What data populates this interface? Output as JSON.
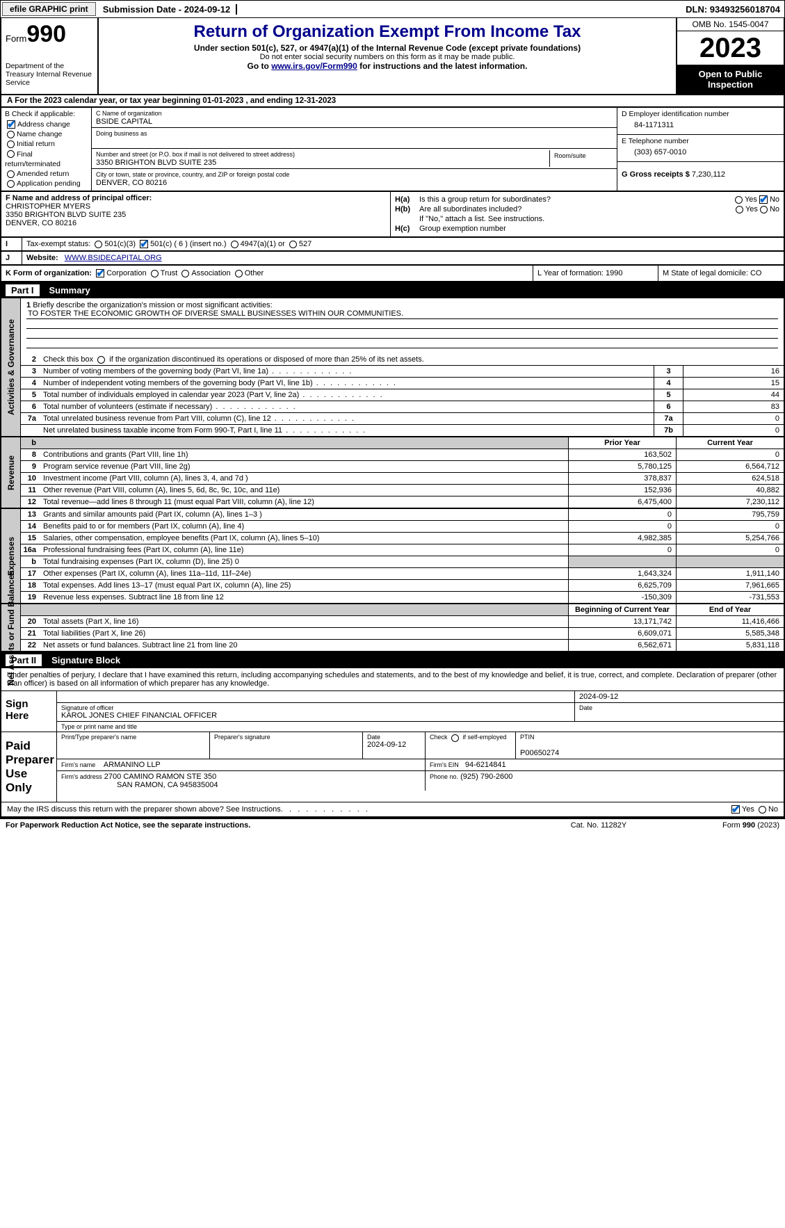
{
  "topbar": {
    "btn1": "efile GRAPHIC print",
    "sub": "Submission Date - 2024-09-12",
    "dln": "DLN: 93493256018704"
  },
  "header": {
    "form_label": "Form",
    "form_no": "990",
    "dept": "Department of the Treasury Internal Revenue Service",
    "title": "Return of Organization Exempt From Income Tax",
    "sub1": "Under section 501(c), 527, or 4947(a)(1) of the Internal Revenue Code (except private foundations)",
    "sub2": "Do not enter social security numbers on this form as it may be made public.",
    "sub3_a": "Go to ",
    "sub3_link": "www.irs.gov/Form990",
    "sub3_b": " for instructions and the latest information.",
    "omb": "OMB No. 1545-0047",
    "year": "2023",
    "otp": "Open to Public Inspection"
  },
  "A": {
    "text": "For the 2023 calendar year, or tax year beginning 01-01-2023   , and ending 12-31-2023"
  },
  "B": {
    "hdr": "B Check if applicable:",
    "items": [
      "Address change",
      "Name change",
      "Initial return",
      "Final return/terminated",
      "Amended return",
      "Application pending"
    ],
    "checked": [
      true,
      false,
      false,
      false,
      false,
      false
    ]
  },
  "C": {
    "name_lbl": "C Name of organization",
    "name": "BSIDE CAPITAL",
    "dba_lbl": "Doing business as",
    "dba": "",
    "addr_lbl": "Number and street (or P.O. box if mail is not delivered to street address)",
    "addr": "3350 BRIGHTON BLVD SUITE 235",
    "room_lbl": "Room/suite",
    "city_lbl": "City or town, state or province, country, and ZIP or foreign postal code",
    "city": "DENVER, CO  80216"
  },
  "D": {
    "lbl": "D Employer identification number",
    "val": "84-1171311"
  },
  "E": {
    "lbl": "E Telephone number",
    "val": "(303) 657-0010"
  },
  "G": {
    "lbl": "G Gross receipts $",
    "val": "7,230,112"
  },
  "F": {
    "lbl": "F  Name and address of principal officer:",
    "name": "CHRISTOPHER MYERS",
    "addr1": "3350 BRIGHTON BLVD SUITE 235",
    "addr2": "DENVER, CO  80216"
  },
  "H": {
    "a": "Is this a group return for subordinates?",
    "b": "Are all subordinates included?",
    "bnote": "If \"No,\" attach a list. See instructions.",
    "c": "Group exemption number",
    "yes": "Yes",
    "no": "No"
  },
  "I": {
    "lbl": "Tax-exempt status:",
    "o1": "501(c)(3)",
    "o2": "501(c) ( 6 ) (insert no.)",
    "o3": "4947(a)(1) or",
    "o4": "527"
  },
  "J": {
    "lbl": "Website:",
    "val": "WWW.BSIDECAPITAL.ORG"
  },
  "K": {
    "lbl": "K Form of organization:",
    "o1": "Corporation",
    "o2": "Trust",
    "o3": "Association",
    "o4": "Other"
  },
  "L": {
    "lbl": "L Year of formation: 1990"
  },
  "M": {
    "lbl": "M State of legal domicile: CO"
  },
  "part1": {
    "num": "Part I",
    "title": "Summary"
  },
  "p1": {
    "l1a": "Briefly describe the organization's mission or most significant activities:",
    "l1b": "TO FOSTER THE ECONOMIC GROWTH OF DIVERSE SMALL BUSINESSES WITHIN OUR COMMUNITIES.",
    "l2": "Check this box      if the organization discontinued its operations or disposed of more than 25% of its net assets.",
    "rows_gov": [
      {
        "n": "3",
        "t": "Number of voting members of the governing body (Part VI, line 1a)",
        "c": "3",
        "v": "16"
      },
      {
        "n": "4",
        "t": "Number of independent voting members of the governing body (Part VI, line 1b)",
        "c": "4",
        "v": "15"
      },
      {
        "n": "5",
        "t": "Total number of individuals employed in calendar year 2023 (Part V, line 2a)",
        "c": "5",
        "v": "44"
      },
      {
        "n": "6",
        "t": "Total number of volunteers (estimate if necessary)",
        "c": "6",
        "v": "83"
      },
      {
        "n": "7a",
        "t": "Total unrelated business revenue from Part VIII, column (C), line 12",
        "c": "7a",
        "v": "0"
      },
      {
        "n": "",
        "t": "Net unrelated business taxable income from Form 990-T, Part I, line 11",
        "c": "7b",
        "v": "0"
      }
    ],
    "col_prior": "Prior Year",
    "col_curr": "Current Year",
    "rows_rev": [
      {
        "n": "8",
        "t": "Contributions and grants (Part VIII, line 1h)",
        "p": "163,502",
        "c": "0"
      },
      {
        "n": "9",
        "t": "Program service revenue (Part VIII, line 2g)",
        "p": "5,780,125",
        "c": "6,564,712"
      },
      {
        "n": "10",
        "t": "Investment income (Part VIII, column (A), lines 3, 4, and 7d )",
        "p": "378,837",
        "c": "624,518"
      },
      {
        "n": "11",
        "t": "Other revenue (Part VIII, column (A), lines 5, 6d, 8c, 9c, 10c, and 11e)",
        "p": "152,936",
        "c": "40,882"
      },
      {
        "n": "12",
        "t": "Total revenue—add lines 8 through 11 (must equal Part VIII, column (A), line 12)",
        "p": "6,475,400",
        "c": "7,230,112"
      }
    ],
    "rows_exp": [
      {
        "n": "13",
        "t": "Grants and similar amounts paid (Part IX, column (A), lines 1–3 )",
        "p": "0",
        "c": "795,759"
      },
      {
        "n": "14",
        "t": "Benefits paid to or for members (Part IX, column (A), line 4)",
        "p": "0",
        "c": "0"
      },
      {
        "n": "15",
        "t": "Salaries, other compensation, employee benefits (Part IX, column (A), lines 5–10)",
        "p": "4,982,385",
        "c": "5,254,766"
      },
      {
        "n": "16a",
        "t": "Professional fundraising fees (Part IX, column (A), line 11e)",
        "p": "0",
        "c": "0"
      },
      {
        "n": "b",
        "t": "Total fundraising expenses (Part IX, column (D), line 25) 0",
        "p": "",
        "c": "",
        "shade": true
      },
      {
        "n": "17",
        "t": "Other expenses (Part IX, column (A), lines 11a–11d, 11f–24e)",
        "p": "1,643,324",
        "c": "1,911,140"
      },
      {
        "n": "18",
        "t": "Total expenses. Add lines 13–17 (must equal Part IX, column (A), line 25)",
        "p": "6,625,709",
        "c": "7,961,665"
      },
      {
        "n": "19",
        "t": "Revenue less expenses. Subtract line 18 from line 12",
        "p": "-150,309",
        "c": "-731,553"
      }
    ],
    "col_beg": "Beginning of Current Year",
    "col_end": "End of Year",
    "rows_na": [
      {
        "n": "20",
        "t": "Total assets (Part X, line 16)",
        "p": "13,171,742",
        "c": "11,416,466"
      },
      {
        "n": "21",
        "t": "Total liabilities (Part X, line 26)",
        "p": "6,609,071",
        "c": "5,585,348"
      },
      {
        "n": "22",
        "t": "Net assets or fund balances. Subtract line 21 from line 20",
        "p": "6,562,671",
        "c": "5,831,118"
      }
    ]
  },
  "vlabels": {
    "gov": "Activities & Governance",
    "rev": "Revenue",
    "exp": "Expenses",
    "na": "Net Assets or Fund Balances"
  },
  "part2": {
    "num": "Part II",
    "title": "Signature Block"
  },
  "sig": {
    "pen": "Under penalties of perjury, I declare that I have examined this return, including accompanying schedules and statements, and to the best of my knowledge and belief, it is true, correct, and complete. Declaration of preparer (other than officer) is based on all information of which preparer has any knowledge.",
    "sign_here": "Sign Here",
    "sig_date": "2024-09-12",
    "sig_lbl": "Signature of officer",
    "officer": "KAROL JONES  CHIEF FINANCIAL OFFICER",
    "type_lbl": "Type or print name and title",
    "date_lbl": "Date",
    "paid": "Paid Preparer Use Only",
    "prep_name_lbl": "Print/Type preparer's name",
    "prep_sig_lbl": "Preparer's signature",
    "prep_date_lbl": "Date",
    "prep_date": "2024-09-12",
    "self_lbl": "Check        if self-employed",
    "ptin_lbl": "PTIN",
    "ptin": "P00650274",
    "firm_name_lbl": "Firm's name",
    "firm_name": "ARMANINO LLP",
    "firm_ein_lbl": "Firm's EIN",
    "firm_ein": "94-6214841",
    "firm_addr_lbl": "Firm's address",
    "firm_addr1": "2700 CAMINO RAMON STE 350",
    "firm_addr2": "SAN RAMON, CA  945835004",
    "phone_lbl": "Phone no.",
    "phone": "(925) 790-2600",
    "discuss": "May the IRS discuss this return with the preparer shown above? See Instructions."
  },
  "footer": {
    "left": "For Paperwork Reduction Act Notice, see the separate instructions.",
    "mid": "Cat. No. 11282Y",
    "right": "Form 990 (2023)"
  }
}
